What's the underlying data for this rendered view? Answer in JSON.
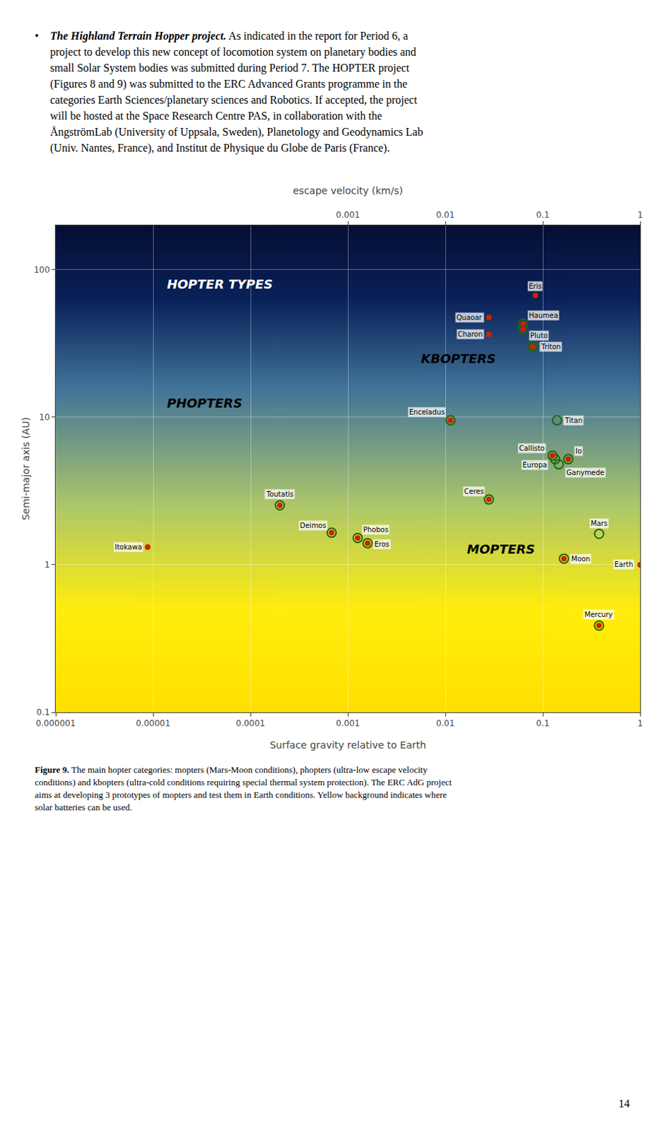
{
  "chart_data": {
    "type": "scatter",
    "xlabel": "Surface gravity relative to Earth",
    "ylabel": "Semi-major axis (AU)",
    "x2label": "escape velocity (km/s)",
    "log": true,
    "grid": true,
    "xlim": [
      1e-06,
      1.0
    ],
    "xticks": [
      1e-06,
      1e-05,
      0.0001,
      0.001,
      0.01,
      0.1,
      1
    ],
    "x2lim": [
      1e-06,
      1.0
    ],
    "x2ticks": [
      0.001,
      0.01,
      0.1,
      1
    ],
    "ylim": [
      0.1,
      200
    ],
    "yticks": [
      0.1,
      1,
      10,
      100
    ],
    "series": [
      {
        "marker": "circle-open",
        "color": "#226600",
        "x": [
          0.063,
          0.063,
          0.079,
          0.0113,
          0.14,
          0.126,
          0.134,
          0.183,
          0.146,
          0.028,
          0.0002,
          0.379,
          0.00068,
          0.00126,
          0.165,
          0.00159,
          0.378
        ],
        "values": [
          43.1,
          39.5,
          30.1,
          9.54,
          9.54,
          5.5,
          5.2,
          5.2,
          4.8,
          2.77,
          2.53,
          1.62,
          1.65,
          1.52,
          1.1,
          1.4,
          0.387
        ]
      },
      {
        "marker": "circle",
        "color": "#cc2200",
        "x": [
          0.084,
          0.063,
          0.028,
          0.063,
          0.028,
          0.079,
          0.0113,
          0.126,
          0.183,
          0.028,
          0.0002,
          0.00068,
          0.00126,
          0.165,
          0.00159,
          1.0,
          0.378,
          8.8e-06
        ],
        "values": [
          67.0,
          43.1,
          47.5,
          39.5,
          36.5,
          30.1,
          9.54,
          5.5,
          5.2,
          2.77,
          2.53,
          1.65,
          1.52,
          1.1,
          1.4,
          1.0,
          0.387,
          1.32
        ]
      }
    ],
    "point_labels": [
      {
        "text": "Eris",
        "x": 0.084,
        "y": 67.0
      },
      {
        "text": "Haumea",
        "x": 0.063,
        "y": 43.1
      },
      {
        "text": "Quaoar",
        "x": 0.028,
        "y": 47.5
      },
      {
        "text": "Pluto",
        "x": 0.063,
        "y": 39.5
      },
      {
        "text": "Charon",
        "x": 0.028,
        "y": 36.5
      },
      {
        "text": "Triton",
        "x": 0.079,
        "y": 30.1
      },
      {
        "text": "Enceladus",
        "x": 0.0113,
        "y": 9.54
      },
      {
        "text": "Titan",
        "x": 0.14,
        "y": 9.54
      },
      {
        "text": "Callisto",
        "x": 0.126,
        "y": 5.5
      },
      {
        "text": "Europa",
        "x": 0.134,
        "y": 5.2
      },
      {
        "text": "Io",
        "x": 0.183,
        "y": 5.2
      },
      {
        "text": "Ganymede",
        "x": 0.146,
        "y": 4.8
      },
      {
        "text": "Ceres",
        "x": 0.028,
        "y": 2.77
      },
      {
        "text": "Toutatis",
        "x": 0.0002,
        "y": 2.53
      },
      {
        "text": "Mars",
        "x": 0.379,
        "y": 1.62
      },
      {
        "text": "Deimos",
        "x": 0.00068,
        "y": 1.65
      },
      {
        "text": "Phobos",
        "x": 0.00126,
        "y": 1.52
      },
      {
        "text": "Moon",
        "x": 0.165,
        "y": 1.1
      },
      {
        "text": "Eros",
        "x": 0.00159,
        "y": 1.4
      },
      {
        "text": "Earth",
        "x": 1.0,
        "y": 1.0
      },
      {
        "text": "Mercury",
        "x": 0.378,
        "y": 0.387
      },
      {
        "text": "Itokawa",
        "x": 8.8e-06,
        "y": 1.32
      }
    ],
    "annotations": [
      {
        "text": "HOPTER TYPES",
        "color": "white"
      },
      {
        "text": "KBOPTERS",
        "color": "black"
      },
      {
        "text": "PHOPTERS",
        "color": "black"
      },
      {
        "text": "MOPTERS",
        "color": "black"
      }
    ]
  },
  "body_text": {
    "bullet": "•",
    "emphasis": "The Highland Terrain Hopper project.",
    "lines": [
      " As indicated in the report for Period 6, a",
      "project to develop this new concept of locomotion system on planetary bodies and",
      "small Solar System bodies was submitted during Period 7. The HOPTER project",
      "(Figures 8 and 9) was submitted to the ERC Advanced Grants programme in the",
      "categories Earth Sciences/planetary sciences and Robotics. If accepted, the project",
      "will be hosted at the Space Research Centre PAS, in collaboration with the",
      "ÅngströmLab (University of Uppsala, Sweden), Planetology and Geodynamics Lab",
      "(Univ. Nantes, France), and Institut de Physique du Globe de Paris (France)."
    ]
  },
  "caption": {
    "label": "Figure 9.",
    "lines": [
      " The main hopter categories: mopters (Mars-Moon conditions), phopters (ultra-low escape velocity",
      "conditions) and kbopters (ultra-cold conditions requiring special thermal system protection). The ERC AdG project",
      "aims at developing 3 prototypes of mopters and test them in Earth conditions. Yellow background indicates where",
      "solar batteries can be used."
    ]
  },
  "page_number": "14"
}
